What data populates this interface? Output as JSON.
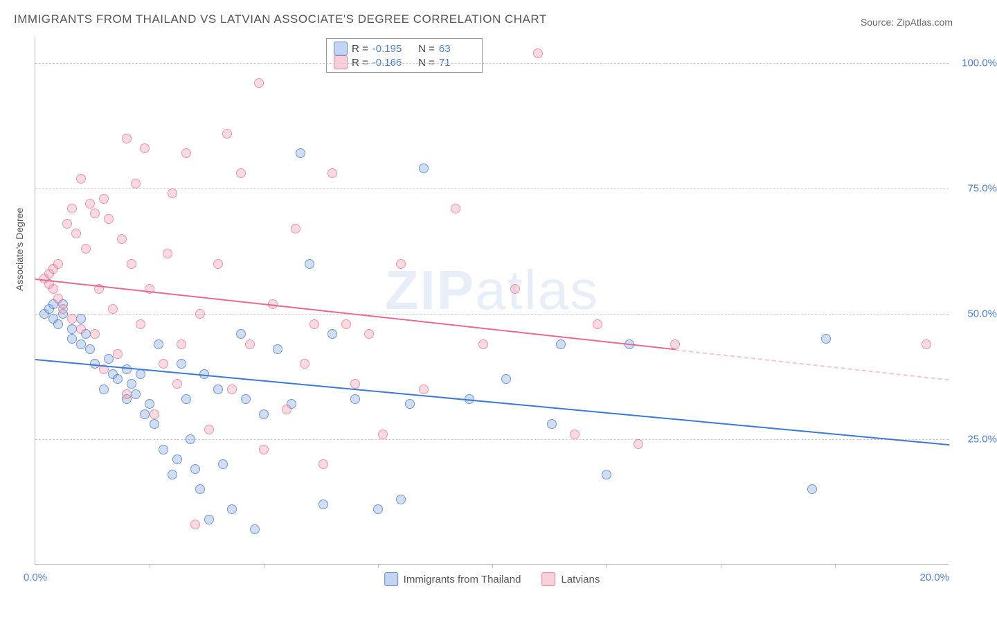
{
  "title": "IMMIGRANTS FROM THAILAND VS LATVIAN ASSOCIATE'S DEGREE CORRELATION CHART",
  "source": "Source: ZipAtlas.com",
  "ylabel": "Associate's Degree",
  "watermark_bold": "ZIP",
  "watermark_rest": "atlas",
  "chart": {
    "xlim": [
      0,
      20
    ],
    "ylim": [
      0,
      105
    ],
    "yticks": [
      {
        "v": 25,
        "label": "25.0%"
      },
      {
        "v": 50,
        "label": "50.0%"
      },
      {
        "v": 75,
        "label": "75.0%"
      },
      {
        "v": 100,
        "label": "100.0%"
      }
    ],
    "xticks_minor": [
      2.5,
      5,
      7.5,
      10,
      12.5,
      15,
      17.5
    ],
    "xticks": [
      {
        "v": 0,
        "label": "0.0%"
      },
      {
        "v": 20,
        "label": "20.0%"
      }
    ],
    "grid_color": "#cccccc",
    "background": "#ffffff",
    "series": [
      {
        "name": "Immigrants from Thailand",
        "color_fill": "rgba(120,160,220,0.35)",
        "color_stroke": "rgba(70,120,200,0.7)",
        "class": "blue",
        "R": "-0.195",
        "N": "63",
        "trend": {
          "x1": 0,
          "y1": 41,
          "x2": 20,
          "y2": 24,
          "color": "#3b78d8"
        },
        "points": [
          [
            0.2,
            50
          ],
          [
            0.3,
            51
          ],
          [
            0.4,
            49
          ],
          [
            0.4,
            52
          ],
          [
            0.5,
            48
          ],
          [
            0.6,
            50
          ],
          [
            0.6,
            52
          ],
          [
            0.8,
            47
          ],
          [
            0.8,
            45
          ],
          [
            1.0,
            49
          ],
          [
            1.0,
            44
          ],
          [
            1.1,
            46
          ],
          [
            1.2,
            43
          ],
          [
            1.3,
            40
          ],
          [
            1.5,
            35
          ],
          [
            1.6,
            41
          ],
          [
            1.7,
            38
          ],
          [
            1.8,
            37
          ],
          [
            2.0,
            39
          ],
          [
            2.0,
            33
          ],
          [
            2.1,
            36
          ],
          [
            2.2,
            34
          ],
          [
            2.3,
            38
          ],
          [
            2.4,
            30
          ],
          [
            2.5,
            32
          ],
          [
            2.6,
            28
          ],
          [
            2.7,
            44
          ],
          [
            2.8,
            23
          ],
          [
            3.0,
            18
          ],
          [
            3.1,
            21
          ],
          [
            3.2,
            40
          ],
          [
            3.3,
            33
          ],
          [
            3.4,
            25
          ],
          [
            3.5,
            19
          ],
          [
            3.6,
            15
          ],
          [
            3.7,
            38
          ],
          [
            3.8,
            9
          ],
          [
            4.0,
            35
          ],
          [
            4.1,
            20
          ],
          [
            4.3,
            11
          ],
          [
            4.5,
            46
          ],
          [
            4.6,
            33
          ],
          [
            4.8,
            7
          ],
          [
            5.0,
            30
          ],
          [
            5.3,
            43
          ],
          [
            5.6,
            32
          ],
          [
            5.8,
            82
          ],
          [
            6.0,
            60
          ],
          [
            6.3,
            12
          ],
          [
            6.5,
            46
          ],
          [
            7.0,
            33
          ],
          [
            7.5,
            11
          ],
          [
            8.0,
            13
          ],
          [
            8.2,
            32
          ],
          [
            8.5,
            79
          ],
          [
            9.5,
            33
          ],
          [
            10.3,
            37
          ],
          [
            11.3,
            28
          ],
          [
            11.5,
            44
          ],
          [
            12.5,
            18
          ],
          [
            13.0,
            44
          ],
          [
            17.0,
            15
          ],
          [
            17.3,
            45
          ]
        ]
      },
      {
        "name": "Latvians",
        "color_fill": "rgba(240,150,170,0.35)",
        "color_stroke": "rgba(230,100,130,0.6)",
        "class": "pink",
        "R": "-0.166",
        "N": "71",
        "trend": {
          "x1": 0,
          "y1": 57,
          "x2": 14,
          "y2": 43,
          "color": "#e86a8f"
        },
        "trend_dashed": {
          "x1": 14,
          "y1": 43,
          "x2": 20,
          "y2": 37
        },
        "points": [
          [
            0.2,
            57
          ],
          [
            0.3,
            56
          ],
          [
            0.3,
            58
          ],
          [
            0.4,
            55
          ],
          [
            0.4,
            59
          ],
          [
            0.5,
            53
          ],
          [
            0.5,
            60
          ],
          [
            0.6,
            51
          ],
          [
            0.7,
            68
          ],
          [
            0.8,
            71
          ],
          [
            0.8,
            49
          ],
          [
            0.9,
            66
          ],
          [
            1.0,
            77
          ],
          [
            1.0,
            47
          ],
          [
            1.1,
            63
          ],
          [
            1.2,
            72
          ],
          [
            1.3,
            70
          ],
          [
            1.3,
            46
          ],
          [
            1.4,
            55
          ],
          [
            1.5,
            73
          ],
          [
            1.5,
            39
          ],
          [
            1.6,
            69
          ],
          [
            1.7,
            51
          ],
          [
            1.8,
            42
          ],
          [
            1.9,
            65
          ],
          [
            2.0,
            85
          ],
          [
            2.0,
            34
          ],
          [
            2.1,
            60
          ],
          [
            2.2,
            76
          ],
          [
            2.3,
            48
          ],
          [
            2.4,
            83
          ],
          [
            2.5,
            55
          ],
          [
            2.6,
            30
          ],
          [
            2.8,
            40
          ],
          [
            2.9,
            62
          ],
          [
            3.0,
            74
          ],
          [
            3.1,
            36
          ],
          [
            3.2,
            44
          ],
          [
            3.3,
            82
          ],
          [
            3.5,
            8
          ],
          [
            3.6,
            50
          ],
          [
            3.8,
            27
          ],
          [
            4.0,
            60
          ],
          [
            4.2,
            86
          ],
          [
            4.3,
            35
          ],
          [
            4.5,
            78
          ],
          [
            4.7,
            44
          ],
          [
            4.9,
            96
          ],
          [
            5.0,
            23
          ],
          [
            5.2,
            52
          ],
          [
            5.5,
            31
          ],
          [
            5.7,
            67
          ],
          [
            5.9,
            40
          ],
          [
            6.1,
            48
          ],
          [
            6.3,
            20
          ],
          [
            6.5,
            78
          ],
          [
            6.8,
            48
          ],
          [
            7.0,
            36
          ],
          [
            7.3,
            46
          ],
          [
            7.6,
            26
          ],
          [
            8.0,
            60
          ],
          [
            8.5,
            35
          ],
          [
            9.2,
            71
          ],
          [
            9.8,
            44
          ],
          [
            10.5,
            55
          ],
          [
            11.0,
            102
          ],
          [
            11.8,
            26
          ],
          [
            12.3,
            48
          ],
          [
            13.2,
            24
          ],
          [
            14.0,
            44
          ],
          [
            19.5,
            44
          ]
        ]
      }
    ],
    "bottom_legend": [
      {
        "class": "blue",
        "label": "Immigrants from Thailand"
      },
      {
        "class": "pink",
        "label": "Latvians"
      }
    ]
  }
}
